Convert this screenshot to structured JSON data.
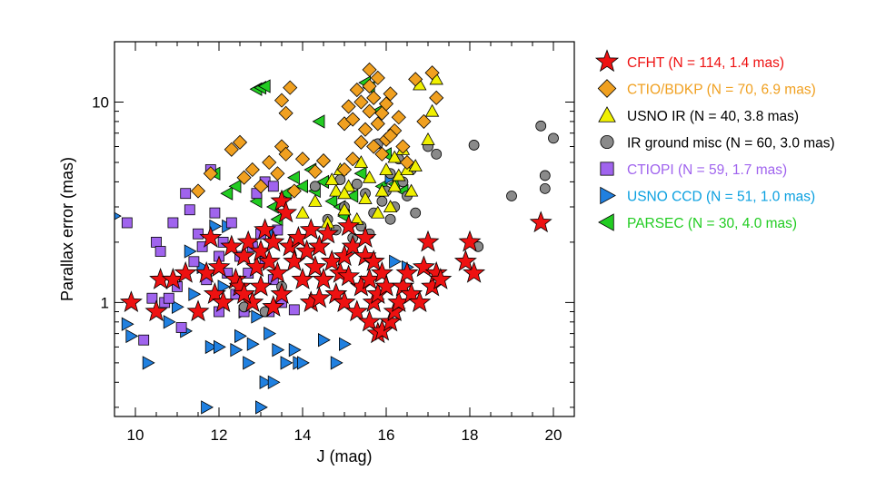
{
  "chart_data": {
    "type": "scatter",
    "xlabel": "J (mag)",
    "ylabel": "Parallax error (mas)",
    "xlim": [
      9.5,
      20.5
    ],
    "ylim": [
      0.27,
      20
    ],
    "yscale": "log",
    "x_ticks": [
      10,
      12,
      14,
      16,
      18,
      20
    ],
    "x_tick_labels": [
      "10",
      "12",
      "14",
      "16",
      "18",
      "20"
    ],
    "y_ticks": [
      1,
      10
    ],
    "y_tick_labels": [
      "1",
      "10"
    ],
    "legend_position": "right",
    "series": [
      {
        "name": "CFHT (N = 114, 1.4 mas)",
        "marker": "star",
        "color": "#ee1111",
        "label_color": "#ee1111",
        "points": [
          [
            9.9,
            1.0
          ],
          [
            10.5,
            0.9
          ],
          [
            10.6,
            1.3
          ],
          [
            10.9,
            1.3
          ],
          [
            11.2,
            1.4
          ],
          [
            11.5,
            0.9
          ],
          [
            11.7,
            1.4
          ],
          [
            11.8,
            2.1
          ],
          [
            11.9,
            1.1
          ],
          [
            12.0,
            1.5
          ],
          [
            12.3,
            1.9
          ],
          [
            12.4,
            1.3
          ],
          [
            12.5,
            1.2
          ],
          [
            12.6,
            1.7
          ],
          [
            12.7,
            2.0
          ],
          [
            12.8,
            1.0
          ],
          [
            12.9,
            1.5
          ],
          [
            13.0,
            1.8
          ],
          [
            13.0,
            1.2
          ],
          [
            13.1,
            2.3
          ],
          [
            13.2,
            1.6
          ],
          [
            13.3,
            2.0
          ],
          [
            13.4,
            1.4
          ],
          [
            13.5,
            1.1
          ],
          [
            13.5,
            3.2
          ],
          [
            13.6,
            2.8
          ],
          [
            13.7,
            1.9
          ],
          [
            13.8,
            1.6
          ],
          [
            13.9,
            2.1
          ],
          [
            14.0,
            1.3
          ],
          [
            14.1,
            1.8
          ],
          [
            14.2,
            2.3
          ],
          [
            14.2,
            1.0
          ],
          [
            14.3,
            1.5
          ],
          [
            14.4,
            1.9
          ],
          [
            14.5,
            1.3
          ],
          [
            14.6,
            2.2
          ],
          [
            14.7,
            1.6
          ],
          [
            14.8,
            1.1
          ],
          [
            14.9,
            1.4
          ],
          [
            15.0,
            1.7
          ],
          [
            15.0,
            1.0
          ],
          [
            15.1,
            2.4
          ],
          [
            15.2,
            1.9
          ],
          [
            15.3,
            0.9
          ],
          [
            15.4,
            1.2
          ],
          [
            15.5,
            1.7
          ],
          [
            15.5,
            2.1
          ],
          [
            15.6,
            1.3
          ],
          [
            15.6,
            0.8
          ],
          [
            15.7,
            1.0
          ],
          [
            15.7,
            1.6
          ],
          [
            15.8,
            1.1
          ],
          [
            15.8,
            0.7
          ],
          [
            15.9,
            1.4
          ],
          [
            15.9,
            0.72
          ],
          [
            16.0,
            1.2
          ],
          [
            16.1,
            0.8
          ],
          [
            16.2,
            0.9
          ],
          [
            16.3,
            1.0
          ],
          [
            16.4,
            1.2
          ],
          [
            16.5,
            1.4
          ],
          [
            16.6,
            1.1
          ],
          [
            16.8,
            1.0
          ],
          [
            16.9,
            1.5
          ],
          [
            17.0,
            2.0
          ],
          [
            17.1,
            1.2
          ],
          [
            17.2,
            1.4
          ],
          [
            17.3,
            1.3
          ],
          [
            17.9,
            1.6
          ],
          [
            18.0,
            2.0
          ],
          [
            18.1,
            1.4
          ],
          [
            19.7,
            2.5
          ],
          [
            12.1,
            1.0
          ],
          [
            12.6,
            1.1
          ],
          [
            13.3,
            0.95
          ],
          [
            14.4,
            1.05
          ],
          [
            15.1,
            1.35
          ]
        ]
      },
      {
        "name": "CTIO/BDKP (N = 70, 6.9 mas)",
        "marker": "diamond",
        "color": "#f0a020",
        "label_color": "#f0a020",
        "points": [
          [
            11.5,
            3.6
          ],
          [
            11.8,
            4.4
          ],
          [
            12.3,
            5.8
          ],
          [
            12.5,
            6.3
          ],
          [
            12.6,
            4.2
          ],
          [
            12.8,
            4.6
          ],
          [
            13.0,
            3.8
          ],
          [
            13.2,
            5.0
          ],
          [
            13.4,
            4.4
          ],
          [
            13.5,
            6.0
          ],
          [
            13.6,
            5.5
          ],
          [
            13.8,
            3.6
          ],
          [
            14.0,
            5.2
          ],
          [
            13.5,
            10.2
          ],
          [
            13.6,
            8.8
          ],
          [
            13.7,
            11.8
          ],
          [
            14.3,
            4.5
          ],
          [
            14.5,
            5.1
          ],
          [
            15.0,
            7.8
          ],
          [
            15.1,
            9.5
          ],
          [
            15.2,
            8.2
          ],
          [
            15.3,
            11.5
          ],
          [
            15.4,
            6.3
          ],
          [
            15.5,
            7.3
          ],
          [
            15.6,
            9.0
          ],
          [
            15.6,
            12.0
          ],
          [
            15.7,
            10.5
          ],
          [
            15.8,
            7.8
          ],
          [
            15.8,
            13.2
          ],
          [
            15.9,
            8.8
          ],
          [
            16.0,
            6.5
          ],
          [
            16.0,
            9.8
          ],
          [
            16.1,
            11.0
          ],
          [
            16.2,
            7.2
          ],
          [
            16.3,
            8.4
          ],
          [
            16.4,
            6.0
          ],
          [
            16.5,
            5.0
          ],
          [
            16.7,
            13.0
          ],
          [
            16.9,
            8.0
          ],
          [
            17.1,
            14.0
          ],
          [
            17.2,
            10.5
          ],
          [
            15.6,
            14.5
          ],
          [
            15.4,
            10.0
          ],
          [
            15.7,
            6.0
          ],
          [
            15.9,
            5.5
          ],
          [
            16.1,
            6.8
          ],
          [
            15.2,
            5.2
          ],
          [
            15.0,
            4.6
          ]
        ]
      },
      {
        "name": "USNO IR (N = 40, 3.8 mas)",
        "marker": "triangle-up",
        "color": "#f0f000",
        "label_color": "#000000",
        "points": [
          [
            14.0,
            2.8
          ],
          [
            14.3,
            3.2
          ],
          [
            14.6,
            2.5
          ],
          [
            14.8,
            3.6
          ],
          [
            15.0,
            2.9
          ],
          [
            15.1,
            3.8
          ],
          [
            15.3,
            2.6
          ],
          [
            15.5,
            3.3
          ],
          [
            15.6,
            4.2
          ],
          [
            15.8,
            2.8
          ],
          [
            15.9,
            3.6
          ],
          [
            16.0,
            4.6
          ],
          [
            16.1,
            3.0
          ],
          [
            16.2,
            3.8
          ],
          [
            16.3,
            4.3
          ],
          [
            16.4,
            5.8
          ],
          [
            16.5,
            4.6
          ],
          [
            16.6,
            3.6
          ],
          [
            16.7,
            4.8
          ],
          [
            17.0,
            6.5
          ],
          [
            17.1,
            9.0
          ],
          [
            16.8,
            12.2
          ],
          [
            17.2,
            13.0
          ],
          [
            15.0,
            3.5
          ],
          [
            14.7,
            4.1
          ],
          [
            15.4,
            5.0
          ],
          [
            16.2,
            5.3
          ],
          [
            14.9,
            4.6
          ]
        ]
      },
      {
        "name": "IR ground misc (N = 60, 3.0 mas)",
        "marker": "circle",
        "color": "#8a8a8a",
        "label_color": "#000000",
        "points": [
          [
            14.6,
            2.6
          ],
          [
            14.8,
            2.3
          ],
          [
            15.0,
            3.0
          ],
          [
            15.2,
            2.1
          ],
          [
            15.4,
            2.4
          ],
          [
            15.5,
            3.5
          ],
          [
            15.6,
            2.2
          ],
          [
            15.7,
            2.8
          ],
          [
            15.8,
            6.2
          ],
          [
            15.9,
            3.2
          ],
          [
            16.0,
            3.6
          ],
          [
            16.1,
            4.4
          ],
          [
            16.2,
            3.0
          ],
          [
            16.3,
            5.2
          ],
          [
            16.4,
            4.0
          ],
          [
            16.5,
            3.4
          ],
          [
            16.6,
            4.6
          ],
          [
            16.7,
            2.8
          ],
          [
            17.0,
            6.0
          ],
          [
            17.2,
            5.5
          ],
          [
            18.1,
            6.1
          ],
          [
            18.2,
            1.9
          ],
          [
            19.0,
            3.4
          ],
          [
            19.7,
            7.6
          ],
          [
            19.8,
            4.3
          ],
          [
            19.8,
            3.7
          ],
          [
            20.0,
            6.6
          ],
          [
            14.3,
            3.8
          ],
          [
            13.5,
            1.2
          ],
          [
            12.6,
            0.95
          ],
          [
            13.1,
            0.9
          ],
          [
            14.9,
            4.1
          ],
          [
            15.3,
            3.9
          ],
          [
            16.1,
            2.6
          ]
        ]
      },
      {
        "name": "CTIOPI (N = 59, 1.7 mas)",
        "marker": "square",
        "color": "#a064ee",
        "label_color": "#a064ee",
        "points": [
          [
            9.8,
            2.5
          ],
          [
            10.5,
            2.0
          ],
          [
            10.6,
            1.8
          ],
          [
            10.7,
            1.0
          ],
          [
            10.9,
            2.5
          ],
          [
            11.0,
            1.2
          ],
          [
            11.2,
            3.5
          ],
          [
            11.3,
            2.9
          ],
          [
            11.4,
            1.6
          ],
          [
            11.5,
            2.2
          ],
          [
            11.6,
            1.9
          ],
          [
            11.7,
            1.3
          ],
          [
            11.8,
            4.6
          ],
          [
            11.9,
            2.8
          ],
          [
            12.0,
            1.7
          ],
          [
            12.1,
            2.0
          ],
          [
            12.2,
            1.4
          ],
          [
            12.3,
            2.5
          ],
          [
            12.4,
            1.1
          ],
          [
            12.5,
            1.7
          ],
          [
            12.6,
            0.9
          ],
          [
            12.7,
            1.4
          ],
          [
            12.8,
            1.9
          ],
          [
            12.9,
            3.5
          ],
          [
            13.0,
            2.2
          ],
          [
            13.1,
            1.6
          ],
          [
            13.2,
            0.9
          ],
          [
            13.3,
            1.3
          ],
          [
            13.4,
            2.3
          ],
          [
            13.5,
            1.0
          ],
          [
            10.4,
            1.05
          ],
          [
            10.8,
            1.05
          ],
          [
            11.1,
            0.75
          ],
          [
            10.2,
            0.65
          ],
          [
            12.0,
            0.9
          ],
          [
            13.1,
            4.0
          ],
          [
            13.8,
            0.92
          ],
          [
            13.3,
            3.8
          ]
        ]
      },
      {
        "name": "USNO CCD (N = 51, 1.0 mas)",
        "marker": "triangle-right",
        "color": "#2080e0",
        "label_color": "#0aa0e0",
        "points": [
          [
            9.5,
            2.7
          ],
          [
            9.8,
            0.78
          ],
          [
            9.9,
            0.68
          ],
          [
            10.3,
            0.5
          ],
          [
            10.8,
            0.8
          ],
          [
            11.0,
            0.95
          ],
          [
            11.2,
            0.72
          ],
          [
            11.3,
            1.8
          ],
          [
            11.4,
            1.1
          ],
          [
            11.6,
            1.5
          ],
          [
            11.8,
            0.6
          ],
          [
            11.9,
            2.4
          ],
          [
            12.0,
            0.6
          ],
          [
            12.1,
            1.2
          ],
          [
            12.4,
            0.58
          ],
          [
            12.5,
            0.68
          ],
          [
            12.6,
            0.9
          ],
          [
            12.7,
            0.5
          ],
          [
            12.8,
            0.62
          ],
          [
            12.9,
            0.85
          ],
          [
            13.0,
            0.3
          ],
          [
            13.1,
            0.4
          ],
          [
            13.2,
            0.7
          ],
          [
            13.3,
            0.4
          ],
          [
            13.4,
            0.58
          ],
          [
            13.6,
            0.5
          ],
          [
            13.8,
            0.58
          ],
          [
            13.9,
            0.5
          ],
          [
            14.0,
            0.5
          ],
          [
            14.8,
            0.5
          ],
          [
            11.7,
            0.3
          ],
          [
            12.2,
            2.4
          ],
          [
            13.3,
            2.2
          ],
          [
            16.2,
            1.6
          ],
          [
            16.5,
            1.5
          ],
          [
            16.1,
            4.2
          ],
          [
            14.5,
            0.65
          ],
          [
            15.0,
            0.62
          ]
        ]
      },
      {
        "name": "PARSEC (N = 30, 4.0 mas)",
        "marker": "triangle-left",
        "color": "#22cc22",
        "label_color": "#22cc22",
        "points": [
          [
            11.9,
            4.4
          ],
          [
            12.2,
            3.5
          ],
          [
            12.4,
            3.8
          ],
          [
            12.9,
            11.6
          ],
          [
            13.0,
            11.8
          ],
          [
            13.1,
            12.0
          ],
          [
            13.3,
            3.0
          ],
          [
            13.4,
            2.6
          ],
          [
            13.6,
            3.5
          ],
          [
            13.8,
            4.2
          ],
          [
            14.0,
            3.8
          ],
          [
            14.2,
            4.6
          ],
          [
            14.4,
            8.0
          ],
          [
            14.5,
            4.0
          ],
          [
            14.7,
            3.2
          ],
          [
            14.9,
            3.0
          ],
          [
            15.0,
            2.7
          ],
          [
            15.2,
            3.4
          ],
          [
            15.5,
            12.5
          ],
          [
            15.6,
            11.8
          ],
          [
            15.8,
            9.0
          ],
          [
            15.9,
            3.8
          ],
          [
            16.0,
            5.5
          ],
          [
            16.2,
            3.9
          ],
          [
            16.4,
            3.6
          ],
          [
            15.4,
            4.4
          ],
          [
            14.3,
            3.6
          ],
          [
            12.9,
            3.2
          ]
        ]
      }
    ]
  }
}
